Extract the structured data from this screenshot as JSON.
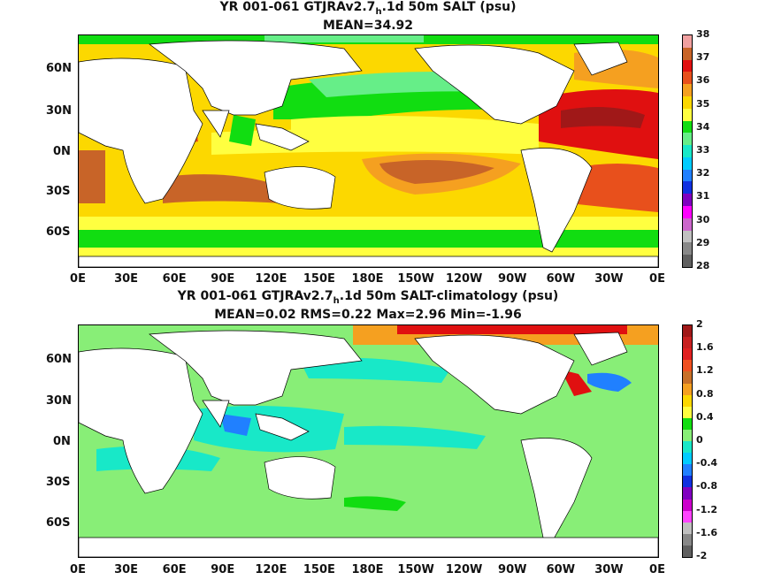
{
  "panels": [
    {
      "title_pre": "YR 001-061 GTJRAv2.7",
      "title_sub": "h",
      "title_post": ".1d 50m SALT (psu)",
      "subtitle": "MEAN=34.92",
      "lat_labels": [
        "60N",
        "30N",
        "0N",
        "30S",
        "60S"
      ],
      "lon_labels": [
        "0E",
        "30E",
        "60E",
        "90E",
        "120E",
        "150E",
        "180E",
        "150W",
        "120W",
        "90W",
        "60W",
        "30W",
        "0E"
      ],
      "colorbar_labels": [
        "38",
        "37",
        "36",
        "35",
        "34",
        "33",
        "32",
        "31",
        "30",
        "29",
        "28"
      ],
      "colors": [
        "#f0a0a0",
        "#c86428",
        "#e01010",
        "#e8501c",
        "#f5a020",
        "#fcd800",
        "#ffff40",
        "#11dd11",
        "#66ee88",
        "#18e8c8",
        "#00ccff",
        "#2080ff",
        "#1030e0",
        "#8000c0",
        "#ff00ff",
        "#cc66cc",
        "#c0c0c0",
        "#888888",
        "#606060"
      ]
    },
    {
      "title_pre": "YR 001-061 GTJRAv2.7",
      "title_sub": "h",
      "title_post": ".1d 50m SALT-climatology (psu)",
      "subtitle": "MEAN=0.02   RMS=0.22   Max=2.96   Min=-1.96",
      "lat_labels": [
        "60N",
        "30N",
        "0N",
        "30S",
        "60S"
      ],
      "lon_labels": [
        "0E",
        "30E",
        "60E",
        "90E",
        "120E",
        "150E",
        "180E",
        "150W",
        "120W",
        "90W",
        "60W",
        "30W",
        "0E"
      ],
      "colorbar_labels": [
        "2",
        "1.6",
        "1.2",
        "0.8",
        "0.4",
        "0",
        "-0.4",
        "-0.8",
        "-1.2",
        "-1.6",
        "-2"
      ],
      "colors": [
        "#a01818",
        "#c82020",
        "#e02020",
        "#f05020",
        "#c87028",
        "#f5a020",
        "#fcd800",
        "#ffff40",
        "#11dd11",
        "#88ee77",
        "#18e8c8",
        "#00ccff",
        "#2080ff",
        "#1030e0",
        "#8000c0",
        "#cc00cc",
        "#ff44ff",
        "#c0c0c0",
        "#888888",
        "#606060"
      ]
    }
  ]
}
